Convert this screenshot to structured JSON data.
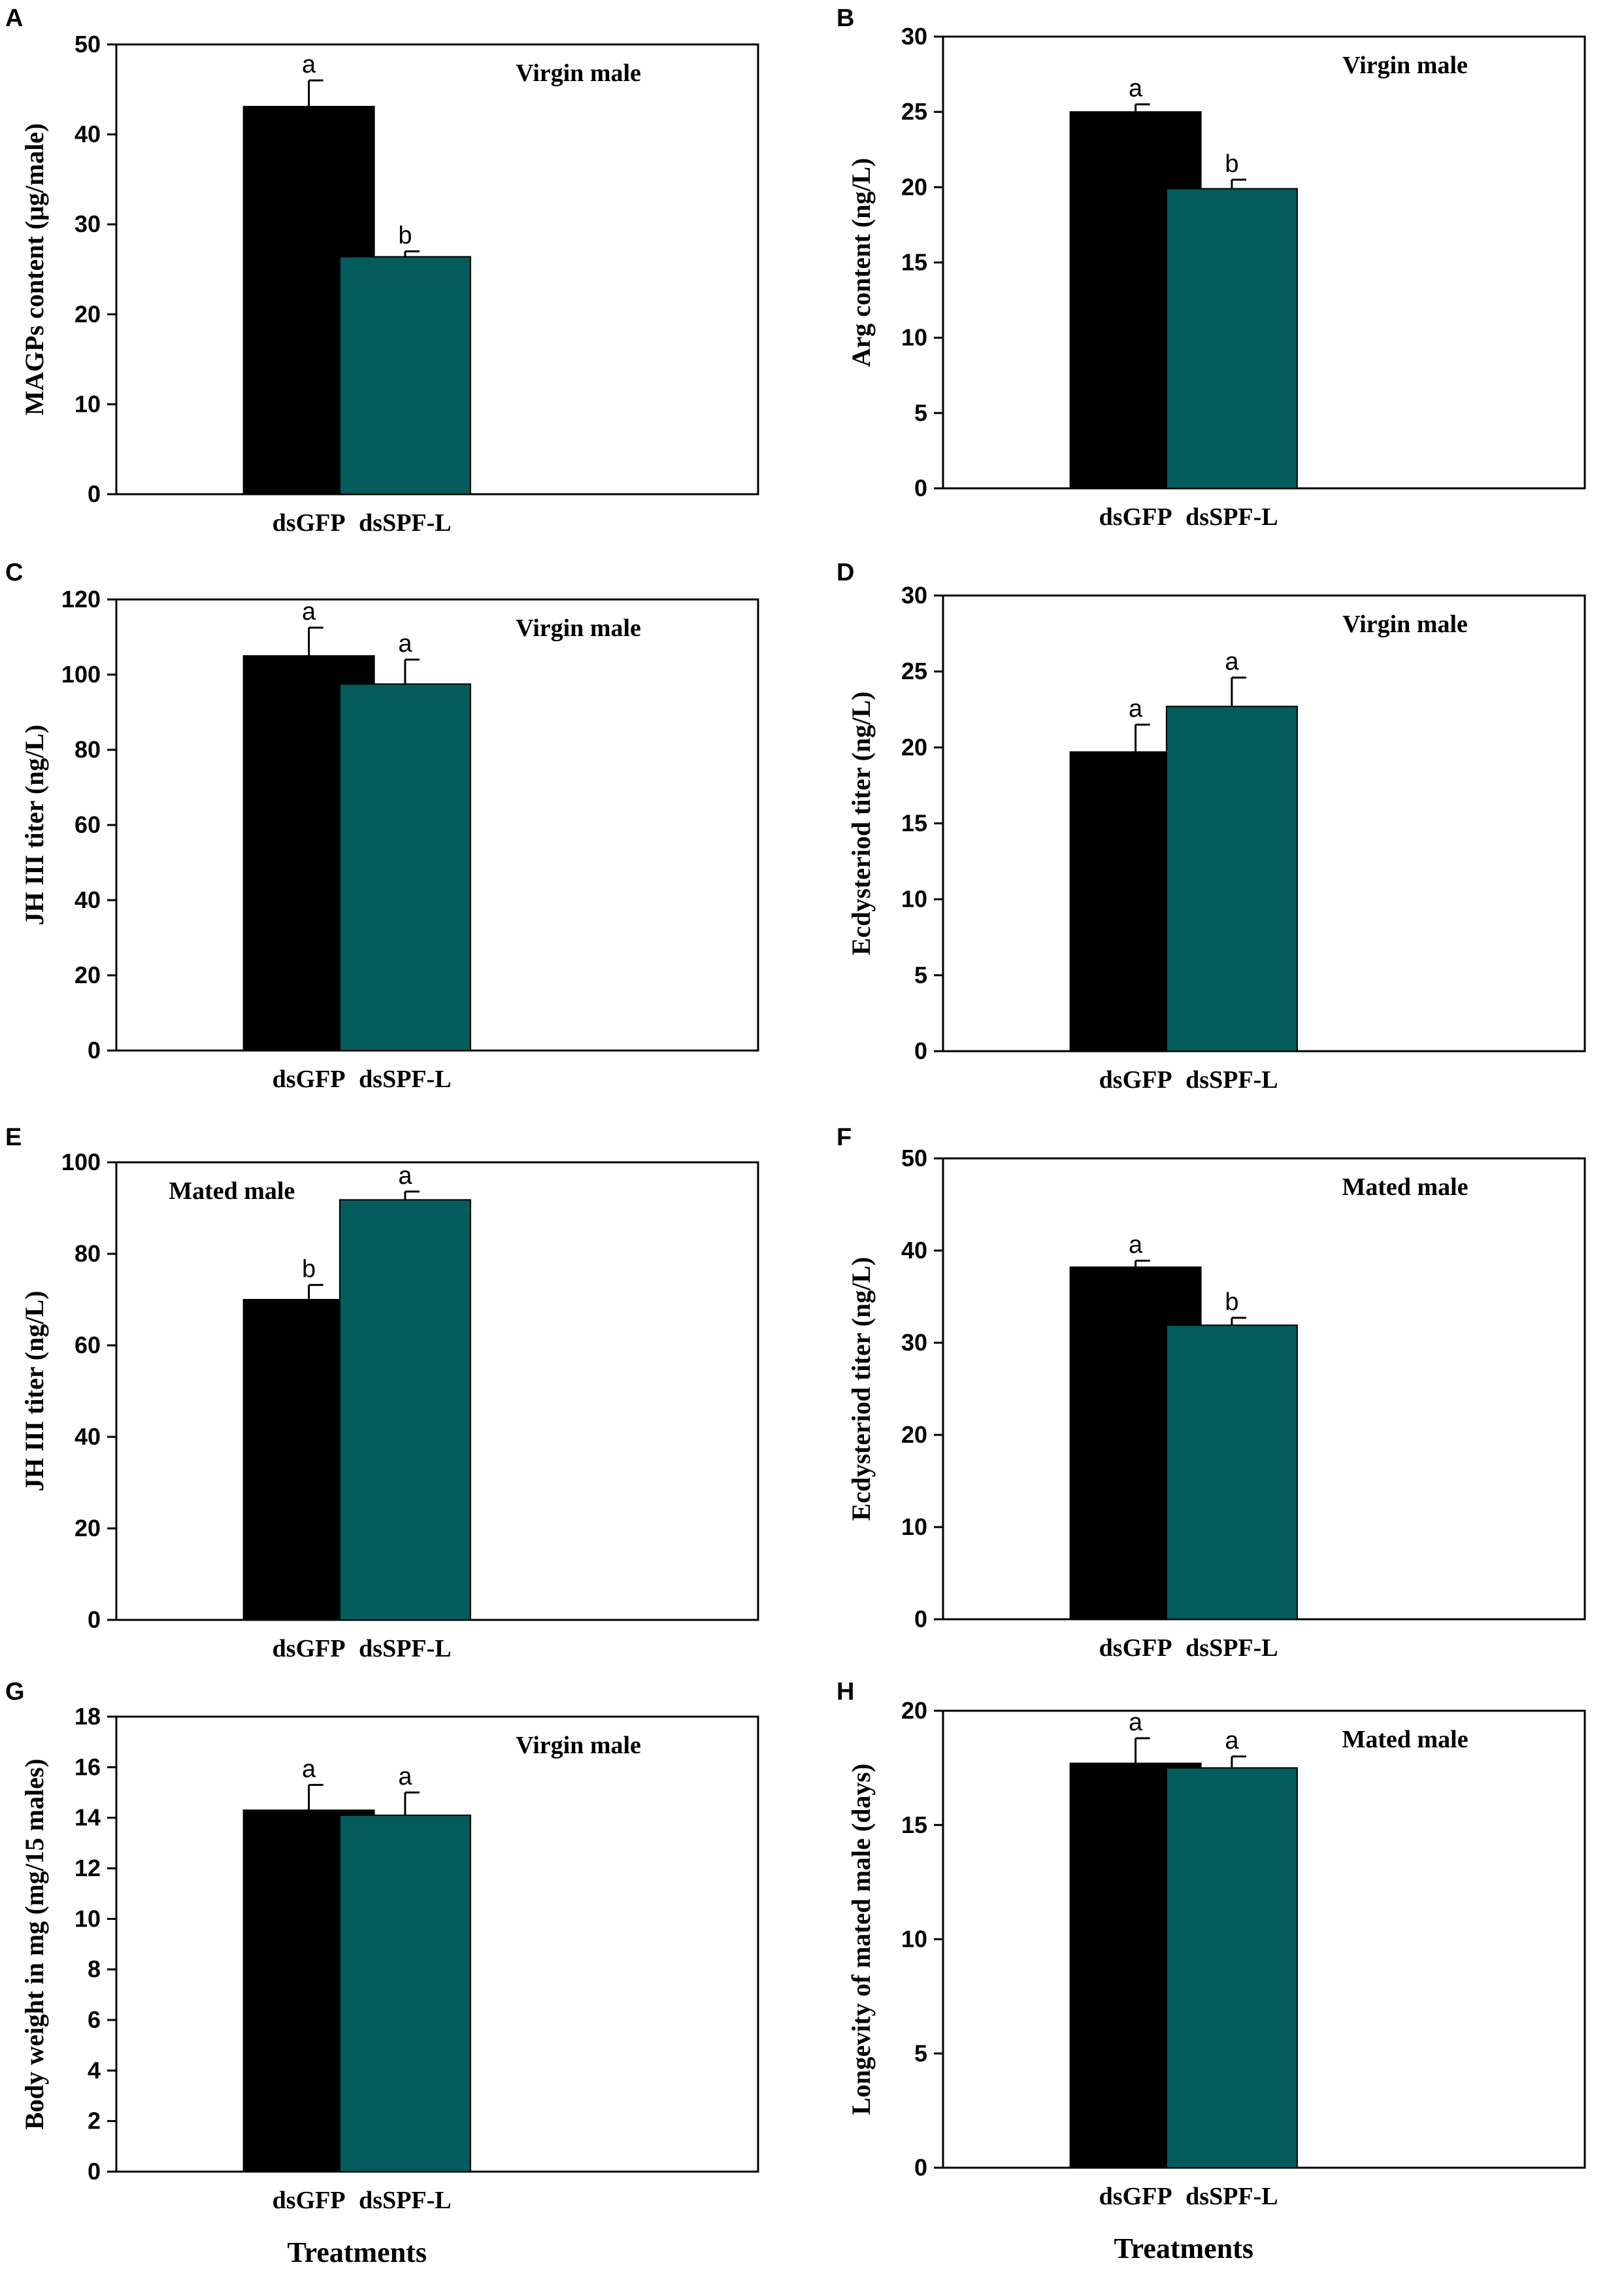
{
  "figure": {
    "x_title": "Treatments"
  },
  "colors": {
    "dsGFP": "#000000",
    "dsSPF-L": "#045c5c",
    "axis": "#000000",
    "background": "#ffffff"
  },
  "chart_data": [
    {
      "panel": "A",
      "type": "bar",
      "categories": [
        "dsGFP",
        "dsSPF-L"
      ],
      "values": [
        43.1,
        26.4
      ],
      "errors": [
        2.9,
        0.6
      ],
      "significance": [
        "a",
        "b"
      ],
      "annotation": "Virgin male",
      "annotation_position": "top-right",
      "ylabel": "MAGPs content (μg/male)",
      "ylim": [
        0,
        50
      ],
      "yticks": [
        0,
        10,
        20,
        30,
        40,
        50
      ],
      "xlabel": ""
    },
    {
      "panel": "B",
      "type": "bar",
      "categories": [
        "dsGFP",
        "dsSPF-L"
      ],
      "values": [
        25.0,
        19.9
      ],
      "errors": [
        0.5,
        0.6
      ],
      "significance": [
        "a",
        "b"
      ],
      "annotation": "Virgin male",
      "annotation_position": "top-right",
      "ylabel": "Arg content (ng/L)",
      "ylim": [
        0,
        30
      ],
      "yticks": [
        0,
        5,
        10,
        15,
        20,
        25,
        30
      ],
      "xlabel": ""
    },
    {
      "panel": "C",
      "type": "bar",
      "categories": [
        "dsGFP",
        "dsSPF-L"
      ],
      "values": [
        105.0,
        97.5
      ],
      "errors": [
        7.5,
        6.5
      ],
      "significance": [
        "a",
        "a"
      ],
      "annotation": "Virgin male",
      "annotation_position": "top-right",
      "ylabel": "JH III titer (ng/L)",
      "ylim": [
        0,
        120
      ],
      "yticks": [
        0,
        20,
        40,
        60,
        80,
        100,
        120
      ],
      "xlabel": ""
    },
    {
      "panel": "D",
      "type": "bar",
      "categories": [
        "dsGFP",
        "dsSPF-L"
      ],
      "values": [
        19.7,
        22.7
      ],
      "errors": [
        1.8,
        1.9
      ],
      "significance": [
        "a",
        "a"
      ],
      "annotation": "Virgin male",
      "annotation_position": "top-right",
      "ylabel": "Ecdysteriod titer (ng/L)",
      "ylim": [
        0,
        30
      ],
      "yticks": [
        0,
        5,
        10,
        15,
        20,
        25,
        30
      ],
      "xlabel": ""
    },
    {
      "panel": "E",
      "type": "bar",
      "categories": [
        "dsGFP",
        "dsSPF-L"
      ],
      "values": [
        70.0,
        91.8
      ],
      "errors": [
        3.2,
        1.8
      ],
      "significance": [
        "b",
        "a"
      ],
      "annotation": "Mated male",
      "annotation_position": "top-left",
      "ylabel": "JH III titer (ng/L)",
      "ylim": [
        0,
        100
      ],
      "yticks": [
        0,
        20,
        40,
        60,
        80,
        100
      ],
      "xlabel": ""
    },
    {
      "panel": "F",
      "type": "bar",
      "categories": [
        "dsGFP",
        "dsSPF-L"
      ],
      "values": [
        38.2,
        31.9
      ],
      "errors": [
        0.7,
        0.8
      ],
      "significance": [
        "a",
        "b"
      ],
      "annotation": "Mated male",
      "annotation_position": "top-right",
      "ylabel": "Ecdysteriod titer (ng/L)",
      "ylim": [
        0,
        50
      ],
      "yticks": [
        0,
        10,
        20,
        30,
        40,
        50
      ],
      "xlabel": ""
    },
    {
      "panel": "G",
      "type": "bar",
      "categories": [
        "dsGFP",
        "dsSPF-L"
      ],
      "values": [
        14.3,
        14.1
      ],
      "errors": [
        1.0,
        0.9
      ],
      "significance": [
        "a",
        "a"
      ],
      "annotation": "Virgin male",
      "annotation_position": "top-right",
      "ylabel": "Body weight in mg (mg/15 males)",
      "ylim": [
        0,
        18
      ],
      "yticks": [
        0,
        2,
        4,
        6,
        8,
        10,
        12,
        14,
        16,
        18
      ],
      "xlabel": "Treatments"
    },
    {
      "panel": "H",
      "type": "bar",
      "categories": [
        "dsGFP",
        "dsSPF-L"
      ],
      "values": [
        17.7,
        17.5
      ],
      "errors": [
        1.1,
        0.5
      ],
      "significance": [
        "a",
        "a"
      ],
      "annotation": "Mated male",
      "annotation_position": "top-right",
      "ylabel": "Longevity of  mated male (days)",
      "ylim": [
        0,
        20
      ],
      "yticks": [
        0,
        5,
        10,
        15,
        20
      ],
      "xlabel": "Treatments"
    }
  ]
}
